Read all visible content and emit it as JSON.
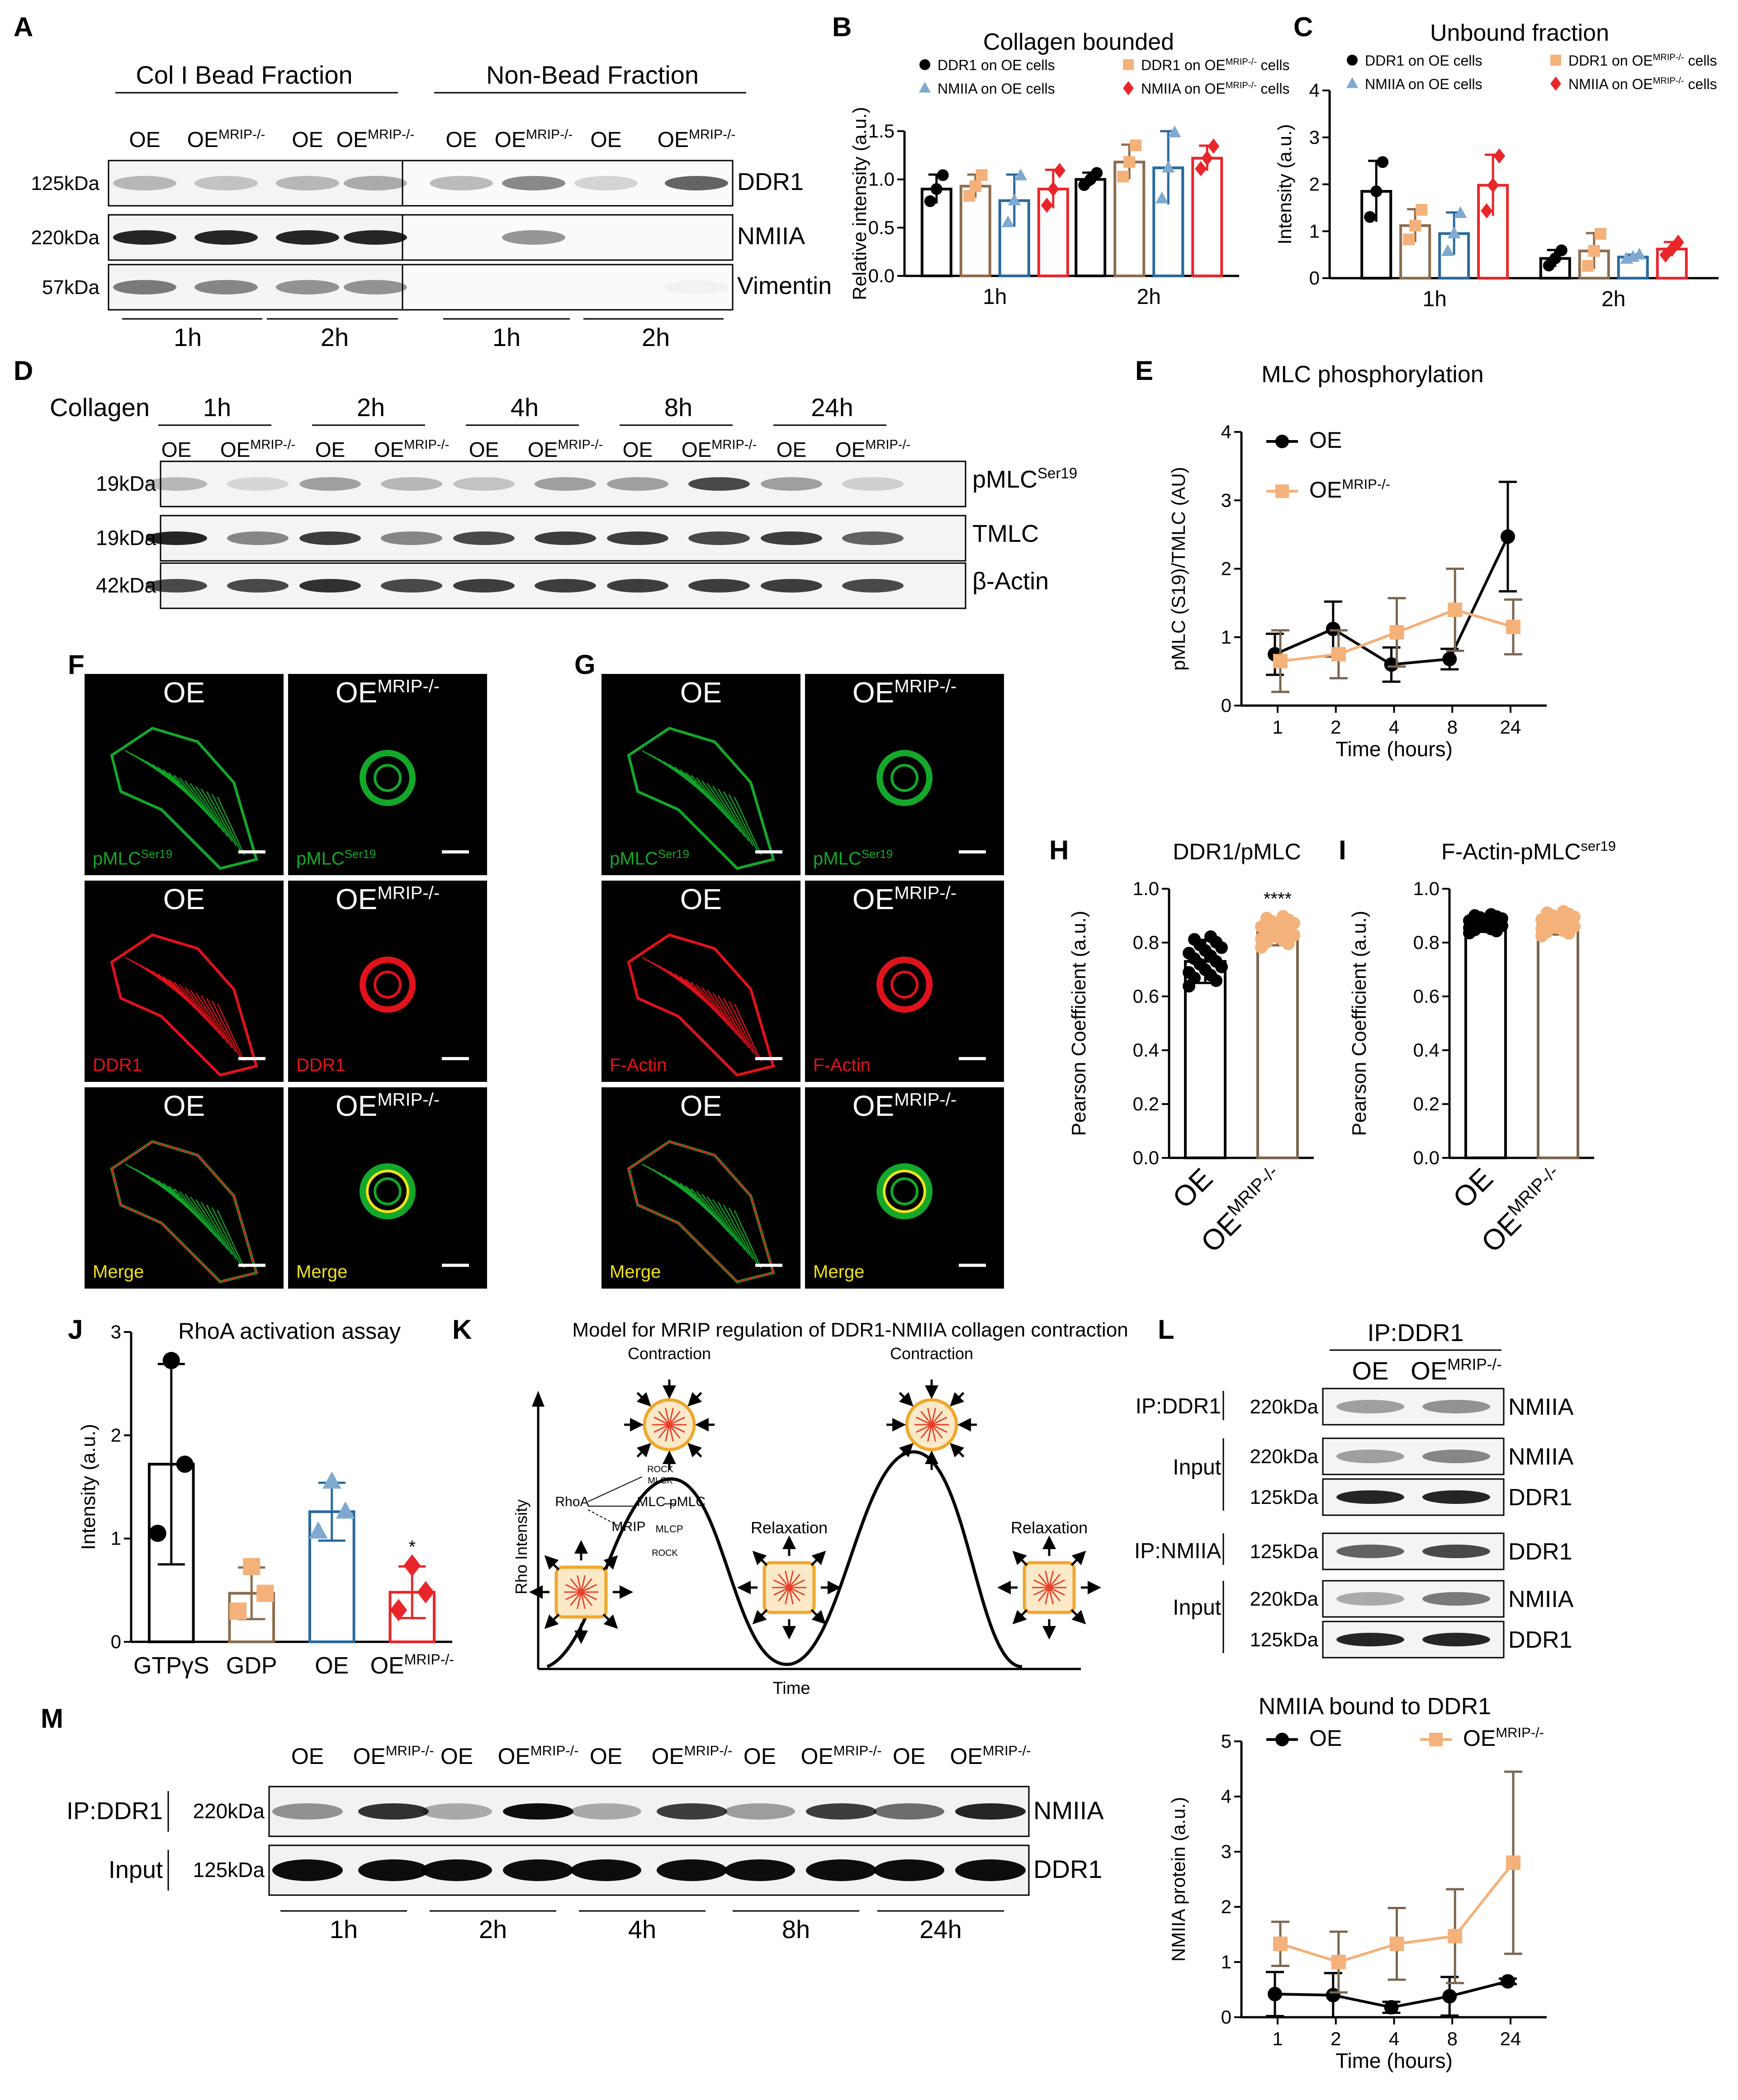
{
  "panel_labels": {
    "A": "A",
    "B": "B",
    "C": "C",
    "D": "D",
    "E": "E",
    "F": "F",
    "G": "G",
    "H": "H",
    "I": "I",
    "J": "J",
    "K": "K",
    "L": "L",
    "M": "M"
  },
  "blot_a": {
    "group1": "Col I Bead Fraction",
    "group2": "Non-Bead Fraction",
    "lanes": [
      "OE",
      "OEMRIP-/-",
      "OE",
      "OEMRIP-/-",
      "OE",
      "OEMRIP-/-",
      "OE",
      "OEMRIP-/-"
    ],
    "rows": [
      {
        "marker": "125kDa",
        "protein": "DDR1"
      },
      {
        "marker": "220kDa",
        "protein": "NMIIA"
      },
      {
        "marker": "57kDa",
        "protein": "Vimentin"
      }
    ],
    "times": [
      "1h",
      "2h",
      "1h",
      "2h"
    ]
  },
  "blot_d": {
    "label": "Collagen",
    "times": [
      "1h",
      "2h",
      "4h",
      "8h",
      "24h"
    ],
    "lane_pair": [
      "OE",
      "OEMRIP-/-"
    ],
    "rows": [
      {
        "marker": "19kDa",
        "protein": "pMLCSer19"
      },
      {
        "marker": "19kDa",
        "protein": "TMLC"
      },
      {
        "marker": "42kDa",
        "protein": "β-Actin"
      }
    ]
  },
  "micro_f": {
    "rows": [
      {
        "left_title": "OE",
        "right_title": "OEMRIP-/-",
        "left_label": "pMLCSer19",
        "right_label": "pMLCSer19",
        "color": "#13a82a"
      },
      {
        "left_title": "OE",
        "right_title": "OEMRIP-/-",
        "left_label": "DDR1",
        "right_label": "DDR1",
        "color": "#e1121b"
      },
      {
        "left_title": "OE",
        "right_title": "OEMRIP-/-",
        "left_label": "Merge",
        "right_label": "Merge",
        "color": "#f2e21c"
      }
    ]
  },
  "micro_g": {
    "rows": [
      {
        "left_title": "OE",
        "right_title": "OEMRIP-/-",
        "left_label": "pMLCSer19",
        "right_label": "pMLCSer19",
        "color": "#13a82a"
      },
      {
        "left_title": "OE",
        "right_title": "OEMRIP-/-",
        "left_label": "F-Actin",
        "right_label": "F-Actin",
        "color": "#e1121b"
      },
      {
        "left_title": "OE",
        "right_title": "OEMRIP-/-",
        "left_label": "Merge",
        "right_label": "Merge",
        "color": "#f2e21c"
      }
    ]
  },
  "model_k": {
    "title": "Model for MRIP regulation of DDR1-NMIIA collagen contraction",
    "ylabel": "Rho Intensity",
    "xlabel": "Time",
    "states": [
      "Contraction",
      "Relaxation",
      "Contraction",
      "Relaxation"
    ],
    "nodes": [
      "RhoA",
      "ROCK",
      "MLCK",
      "MLC",
      "pMLC",
      "MRIP",
      "MLCP",
      "ROCK"
    ]
  },
  "blot_l": {
    "title": "IP:DDR1",
    "lanes": [
      "OE",
      "OEMRIP-/-"
    ],
    "rows": [
      {
        "group": "IP:DDR1",
        "marker": "220kDa",
        "protein": "NMIIA"
      },
      {
        "group": "Input",
        "marker": "220kDa",
        "protein": "NMIIA"
      },
      {
        "group": "",
        "marker": "125kDa",
        "protein": "DDR1"
      },
      {
        "group": "IP:NMIIA",
        "marker": "125kDa",
        "protein": "DDR1"
      },
      {
        "group": "Input",
        "marker": "220kDa",
        "protein": "NMIIA"
      },
      {
        "group": "",
        "marker": "125kDa",
        "protein": "DDR1"
      }
    ]
  },
  "blot_m": {
    "lanes": [
      "OE",
      "OEMRIP-/-",
      "OE",
      "OEMRIP-/-",
      "OE",
      "OEMRIP-/-",
      "OE",
      "OEMRIP-/-",
      "OE",
      "OEMRIP-/-"
    ],
    "rows": [
      {
        "group": "IP:DDR1",
        "marker": "220kDa",
        "protein": "NMIIA"
      },
      {
        "group": "Input",
        "marker": "125kDa",
        "protein": "DDR1"
      }
    ],
    "times": [
      "1h",
      "2h",
      "4h",
      "8h",
      "24h"
    ]
  },
  "chart_data": [
    {
      "id": "B",
      "type": "bar",
      "title": "Collagen bounded",
      "ylabel": "Relative intensity (a.u.)",
      "ylim": [
        0,
        1.5
      ],
      "yticks": [
        "0.0",
        "0.5",
        "1.0",
        "1.5"
      ],
      "categories": [
        "1h",
        "2h"
      ],
      "series": [
        {
          "name": "DDR1 on OE cells",
          "color": "#000000",
          "marker": "circle",
          "values": [
            0.9,
            1.0
          ],
          "errors": [
            0.15,
            0.07
          ]
        },
        {
          "name": "DDR1 on OEMRIP-/- cells",
          "color": "#8c6d4f",
          "marker": "square",
          "values": [
            0.93,
            1.18
          ],
          "errors": [
            0.12,
            0.18
          ]
        },
        {
          "name": "NMIIA on OE cells",
          "color": "#2a6a9e",
          "marker": "triangle",
          "values": [
            0.78,
            1.12
          ],
          "errors": [
            0.27,
            0.38
          ]
        },
        {
          "name": "NMIIA on OEMRIP-/- cells",
          "color": "#e8262a",
          "marker": "diamond",
          "values": [
            0.9,
            1.22
          ],
          "errors": [
            0.2,
            0.13
          ]
        }
      ]
    },
    {
      "id": "C",
      "type": "bar",
      "title": "Unbound fraction",
      "ylabel": "Intensity (a.u.)",
      "ylim": [
        0,
        4
      ],
      "yticks": [
        "0",
        "1",
        "2",
        "3",
        "4"
      ],
      "categories": [
        "1h",
        "2h"
      ],
      "series": [
        {
          "name": "DDR1 on OE cells",
          "color": "#000000",
          "marker": "circle",
          "values": [
            1.85,
            0.42
          ],
          "errors": [
            0.65,
            0.18
          ]
        },
        {
          "name": "DDR1 on OEMRIP-/- cells",
          "color": "#8c6d4f",
          "marker": "square",
          "values": [
            1.12,
            0.58
          ],
          "errors": [
            0.35,
            0.38
          ]
        },
        {
          "name": "NMIIA on OE cells",
          "color": "#2a6a9e",
          "marker": "triangle",
          "values": [
            0.95,
            0.45
          ],
          "errors": [
            0.45,
            0.05
          ]
        },
        {
          "name": "NMIIA on OEMRIP-/- cells",
          "color": "#e8262a",
          "marker": "diamond",
          "values": [
            1.98,
            0.62
          ],
          "errors": [
            0.65,
            0.15
          ]
        }
      ]
    },
    {
      "id": "E",
      "type": "line",
      "title": "MLC phosphorylation",
      "xlabel": "Time (hours)",
      "ylabel": "pMLC (S19)/TMLC (AU)",
      "ylim": [
        0,
        4
      ],
      "yticks": [
        "0",
        "1",
        "2",
        "3",
        "4"
      ],
      "x": [
        "1",
        "2",
        "4",
        "8",
        "24"
      ],
      "series": [
        {
          "name": "OE",
          "color": "#000000",
          "marker": "circle",
          "values": [
            0.75,
            1.12,
            0.6,
            0.68,
            2.47
          ],
          "errors": [
            0.3,
            0.4,
            0.25,
            0.15,
            0.8
          ]
        },
        {
          "name": "OEMRIP-/-",
          "color": "#f4b17a",
          "errbar": "#7a6650",
          "marker": "square",
          "values": [
            0.65,
            0.75,
            1.07,
            1.4,
            1.15
          ],
          "errors": [
            0.45,
            0.35,
            0.5,
            0.6,
            0.4
          ]
        }
      ]
    },
    {
      "id": "H",
      "type": "bar",
      "title": "DDR1/pMLC",
      "ylabel": "Pearson  Coefficient (a.u.)",
      "ylim": [
        0,
        1.0
      ],
      "yticks": [
        "0.0",
        "0.2",
        "0.4",
        "0.6",
        "0.8",
        "1.0"
      ],
      "categories": [
        "OE",
        "OEMRIP-/-"
      ],
      "values": [
        0.73,
        0.84
      ],
      "errors": [
        0.08,
        0.05
      ],
      "bar_colors": [
        "#000000",
        "#7a6650"
      ],
      "point_colors": [
        "#000000",
        "#f4b17a"
      ],
      "annotation": "****"
    },
    {
      "id": "I",
      "type": "bar",
      "title": "F-Actin-pMLCser19",
      "ylabel": "Pearson  Coefficient (a.u.)",
      "ylim": [
        0,
        1.0
      ],
      "yticks": [
        "0.0",
        "0.2",
        "0.4",
        "0.6",
        "0.8",
        "1.0"
      ],
      "categories": [
        "OE",
        "OEMRIP-/-"
      ],
      "values": [
        0.87,
        0.87
      ],
      "errors": [
        0.03,
        0.04
      ],
      "bar_colors": [
        "#000000",
        "#7a6650"
      ],
      "point_colors": [
        "#000000",
        "#f4b17a"
      ]
    },
    {
      "id": "J",
      "type": "bar",
      "title": "RhoA activation assay",
      "ylabel": "Intensity (a.u.)",
      "ylim": [
        0,
        3
      ],
      "yticks": [
        "0",
        "1",
        "2",
        "3"
      ],
      "categories": [
        "GTPγS",
        "GDP",
        "OE",
        "OEMRIP-/-"
      ],
      "values": [
        1.72,
        0.47,
        1.26,
        0.48
      ],
      "errors": [
        0.97,
        0.25,
        0.28,
        0.25
      ],
      "bar_colors": [
        "#000000",
        "#8c6d4f",
        "#2a6a9e",
        "#e8262a"
      ],
      "point_colors": [
        "#000000",
        "#f4b17a",
        "#7fa9cf",
        "#e8262a"
      ],
      "annotation": "*"
    },
    {
      "id": "M",
      "type": "line",
      "title": "NMIIA bound to DDR1",
      "xlabel": "Time (hours)",
      "ylabel": "NMIIA protein (a.u.)",
      "ylim": [
        0,
        5
      ],
      "yticks": [
        "0",
        "1",
        "2",
        "3",
        "4",
        "5"
      ],
      "x": [
        "1",
        "2",
        "4",
        "8",
        "24"
      ],
      "series": [
        {
          "name": "OE",
          "color": "#000000",
          "marker": "circle",
          "values": [
            0.42,
            0.4,
            0.18,
            0.38,
            0.65
          ],
          "errors": [
            0.4,
            0.4,
            0.1,
            0.35,
            0.05
          ]
        },
        {
          "name": "OEMRIP-/-",
          "color": "#f4b17a",
          "errbar": "#7a6650",
          "marker": "square",
          "values": [
            1.33,
            1.0,
            1.33,
            1.47,
            2.8
          ],
          "errors": [
            0.4,
            0.55,
            0.65,
            0.85,
            1.65
          ]
        }
      ]
    }
  ]
}
